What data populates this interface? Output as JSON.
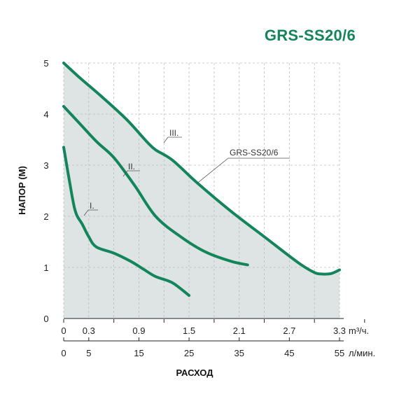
{
  "chart_data": {
    "type": "line",
    "title": "GRS-SS20/6",
    "ylabel": "НАПОР (М)",
    "xlabel": "РАСХОД",
    "x_unit_primary": "m³/ч.",
    "x_unit_secondary": "л/мин.",
    "ylim": [
      0,
      5
    ],
    "xlim": [
      0,
      3.3
    ],
    "y_ticks": [
      "0",
      "1",
      "2",
      "3",
      "4",
      "5"
    ],
    "x_ticks_primary": [
      "0",
      "0.3",
      "0.9",
      "1.5",
      "2.1",
      "2.7",
      "3.3"
    ],
    "x_ticks_secondary": [
      "0",
      "5",
      "15",
      "25",
      "35",
      "45",
      "55"
    ],
    "grid": true,
    "colors": {
      "curve": "#13855a",
      "area": "#dde4e3",
      "grid": "#bdbdbd",
      "title": "#13855a"
    },
    "series": [
      {
        "name": "I.",
        "x": [
          0,
          0.1,
          0.15,
          0.22,
          0.3,
          0.39,
          0.6,
          0.8,
          0.95,
          1.1,
          1.3,
          1.5
        ],
        "y": [
          3.35,
          2.4,
          2.05,
          1.85,
          1.6,
          1.4,
          1.28,
          1.12,
          0.97,
          0.82,
          0.7,
          0.45
        ]
      },
      {
        "name": "II.",
        "x": [
          0,
          0.2,
          0.4,
          0.6,
          0.85,
          1.1,
          1.4,
          1.7,
          2.0,
          2.2
        ],
        "y": [
          4.15,
          3.8,
          3.45,
          3.15,
          2.6,
          2.0,
          1.6,
          1.3,
          1.12,
          1.05
        ]
      },
      {
        "name": "III.",
        "x": [
          0,
          0.2,
          0.45,
          0.75,
          1.0,
          1.1,
          1.3,
          1.6,
          2.0,
          2.4,
          2.8,
          3.0,
          3.1,
          3.2,
          3.3
        ],
        "y": [
          5.0,
          4.7,
          4.35,
          3.9,
          3.45,
          3.3,
          3.1,
          2.65,
          2.1,
          1.6,
          1.1,
          0.9,
          0.87,
          0.88,
          0.95
        ]
      }
    ],
    "annotations": [
      {
        "text": "GRS-SS20/6",
        "target_series": "III.",
        "x": 1.6,
        "y": 2.65
      }
    ]
  }
}
